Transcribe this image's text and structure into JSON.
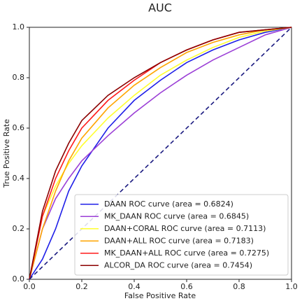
{
  "chart_data": {
    "type": "line",
    "title": "AUC",
    "x_label": "False Positive Rate",
    "y_label": "True Positive Rate",
    "x": [
      0,
      0.05,
      0.1,
      0.15,
      0.2,
      0.3,
      0.4,
      0.5,
      0.6,
      0.7,
      0.8,
      0.9,
      1.0
    ],
    "series": [
      {
        "name": "DAAN ROC curve (area = 0.6824)",
        "color": "#1f1fe8",
        "values": [
          0,
          0.08,
          0.2,
          0.35,
          0.45,
          0.6,
          0.71,
          0.79,
          0.86,
          0.91,
          0.95,
          0.98,
          1.0
        ]
      },
      {
        "name": "MK_DAAN ROC curve (area = 0.6845)",
        "color": "#9b3fd6",
        "values": [
          0,
          0.2,
          0.32,
          0.4,
          0.47,
          0.57,
          0.66,
          0.74,
          0.81,
          0.87,
          0.92,
          0.97,
          1.0
        ]
      },
      {
        "name": "DAAN+CORAL ROC curve (area = 0.7113)",
        "color": "#ffff2e",
        "values": [
          0,
          0.25,
          0.37,
          0.46,
          0.53,
          0.64,
          0.73,
          0.81,
          0.87,
          0.92,
          0.96,
          0.985,
          1.0
        ]
      },
      {
        "name": "DAAN+ALL ROC curve (area = 0.7183)",
        "color": "#ffa500",
        "values": [
          0,
          0.2,
          0.35,
          0.47,
          0.56,
          0.68,
          0.77,
          0.84,
          0.9,
          0.94,
          0.97,
          0.99,
          1.0
        ]
      },
      {
        "name": "MK_DAAN+ALL ROC curve (area = 0.7275)",
        "color": "#ff1a1a",
        "values": [
          0,
          0.25,
          0.4,
          0.51,
          0.6,
          0.71,
          0.79,
          0.86,
          0.91,
          0.95,
          0.98,
          0.99,
          1.0
        ]
      },
      {
        "name": "ALCOR_DA ROC curve (area = 0.7454)",
        "color": "#8b0000",
        "values": [
          0,
          0.27,
          0.43,
          0.54,
          0.63,
          0.73,
          0.8,
          0.86,
          0.91,
          0.95,
          0.98,
          0.99,
          1.0
        ]
      }
    ],
    "diagonal": {
      "x": [
        0,
        1
      ],
      "values": [
        0,
        1
      ],
      "color": "#1a1a80"
    },
    "xlim": [
      0,
      1
    ],
    "ylim": [
      0,
      1
    ],
    "xticks": [
      {
        "value": 0,
        "label": "0.0"
      },
      0.2,
      0.4,
      0.6,
      0.8,
      {
        "value": 1,
        "label": "1.0"
      }
    ],
    "yticks": [
      {
        "value": 0,
        "label": "0.0"
      },
      0.2,
      0.4,
      0.6,
      0.8,
      {
        "value": 1,
        "label": "1.0"
      }
    ],
    "grid": false,
    "legend": "lower right"
  }
}
